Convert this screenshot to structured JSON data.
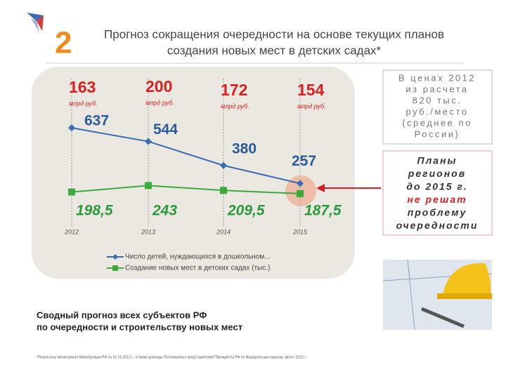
{
  "slide": {
    "number": "2",
    "title": [
      "Прогноз сокращения очередности на основе текущих планов",
      "создания новых мест в детских садах*"
    ],
    "price_box": [
      "В ценах 2012",
      "из расчета",
      "820 тыс.",
      "руб./место",
      "(среднее по",
      "России)"
    ],
    "plans_box": [
      "Планы",
      "регионов",
      "до 2015 г.",
      "не решат",
      "проблему",
      "очередности"
    ],
    "summary": [
      "Сводный прогноз всех субъектов РФ",
      "по очередности и строительству новых мест"
    ],
    "footnote": "*Результаты мониторинга Минобрнауки РФ на 01.01.2012 г., а также доклады Полномочных представителей Президента РФ по Федеральным округам, август 2012 г."
  },
  "chart_data": {
    "type": "line",
    "categories": [
      "2012",
      "2013",
      "2014",
      "2015"
    ],
    "costs": [
      163,
      200,
      172,
      154
    ],
    "cost_unit": "млрд руб.",
    "ylim": [
      0,
      700
    ],
    "series": [
      {
        "name": "Число детей, нуждающихся в дошкольном...",
        "color": "#3a6cb0",
        "values": [
          637,
          544,
          380,
          257
        ]
      },
      {
        "name": "Создание новых мест в детских садах (тыс.)",
        "color": "#3aaa3a",
        "values": [
          198.5,
          243,
          209.5,
          187.5
        ],
        "value_labels": [
          "198,5",
          "243",
          "209,5",
          "187,5"
        ]
      }
    ]
  }
}
